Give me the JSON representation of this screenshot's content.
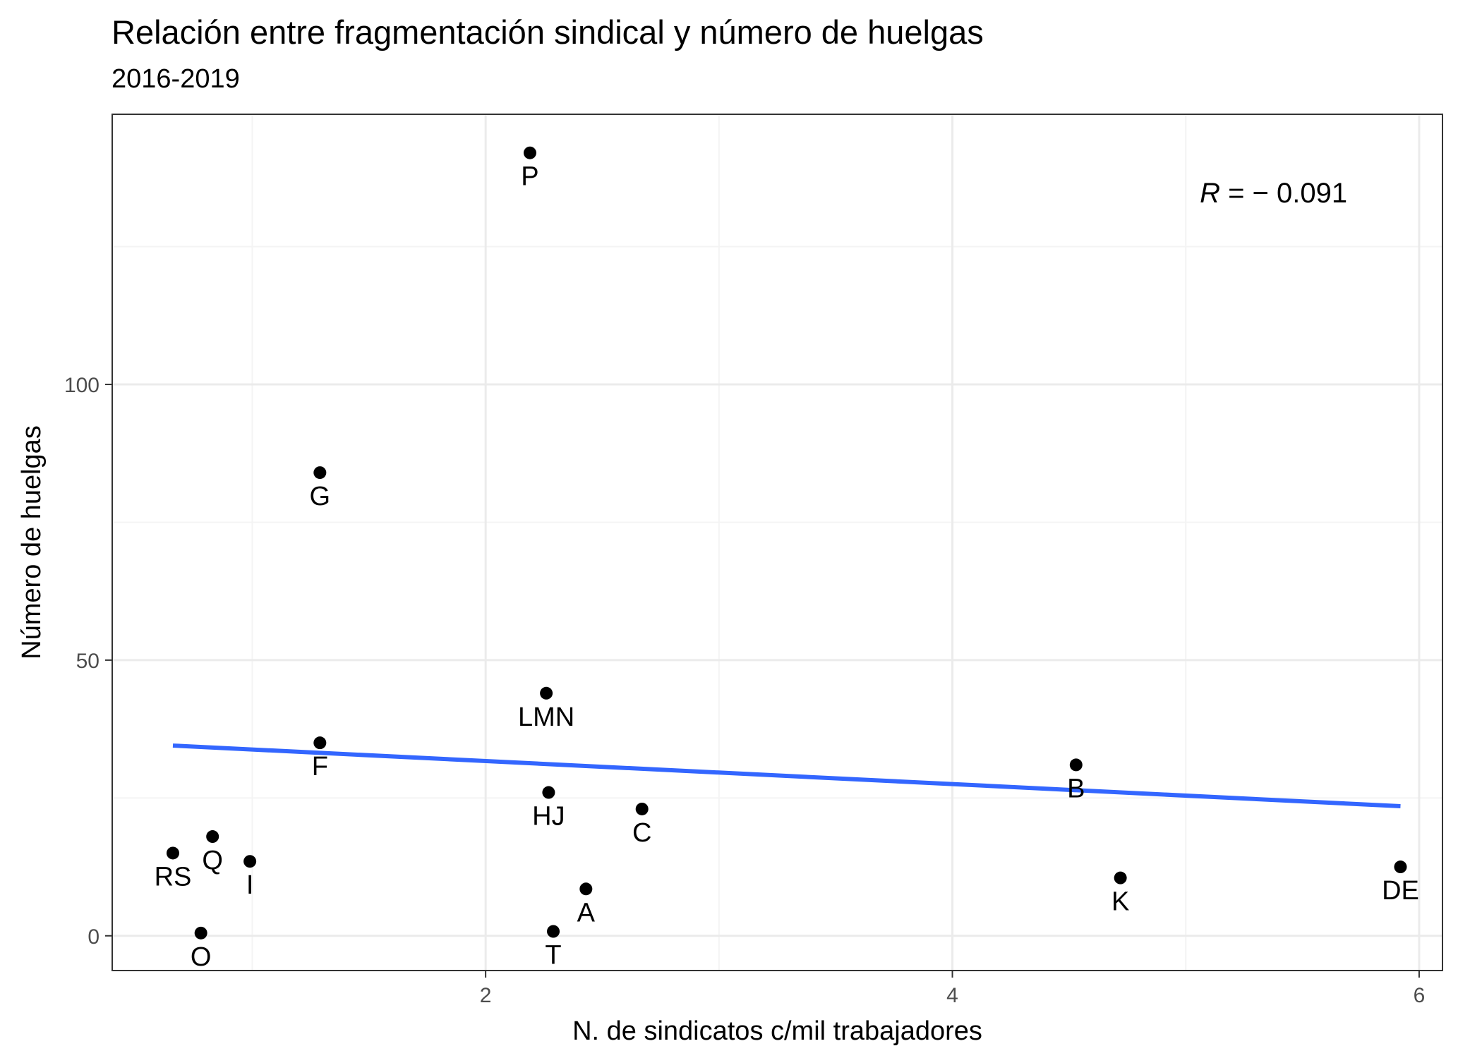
{
  "chart_data": {
    "type": "scatter",
    "title": "Relación entre fragmentación sindical y número de huelgas",
    "subtitle": "2016-2019",
    "xlabel": "N. de sindicatos c/mil trabajadores",
    "ylabel": "Número de huelgas",
    "xlim": [
      0.4,
      6.1
    ],
    "ylim": [
      -6.3,
      149
    ],
    "x_ticks": [
      2,
      4,
      6
    ],
    "y_ticks": [
      0,
      50,
      100
    ],
    "x_tick_labels": [
      "2",
      "4",
      "6"
    ],
    "y_tick_labels": [
      "0",
      "50",
      "100"
    ],
    "grid": true,
    "annotation": {
      "var": "R",
      "text": " = − 0.091",
      "x": 5.06,
      "y": 133
    },
    "points": [
      {
        "label": "P",
        "x": 2.19,
        "y": 142
      },
      {
        "label": "G",
        "x": 1.29,
        "y": 84
      },
      {
        "label": "LMN",
        "x": 2.26,
        "y": 44
      },
      {
        "label": "F",
        "x": 1.29,
        "y": 35
      },
      {
        "label": "B",
        "x": 4.53,
        "y": 31
      },
      {
        "label": "HJ",
        "x": 2.27,
        "y": 26
      },
      {
        "label": "C",
        "x": 2.67,
        "y": 23
      },
      {
        "label": "Q",
        "x": 0.83,
        "y": 18
      },
      {
        "label": "RS",
        "x": 0.66,
        "y": 15
      },
      {
        "label": "I",
        "x": 0.99,
        "y": 13.5
      },
      {
        "label": "DE",
        "x": 5.92,
        "y": 12.5
      },
      {
        "label": "K",
        "x": 4.72,
        "y": 10.5
      },
      {
        "label": "A",
        "x": 2.43,
        "y": 8.5
      },
      {
        "label": "T",
        "x": 2.29,
        "y": 0.8
      },
      {
        "label": "O",
        "x": 0.78,
        "y": 0.5
      }
    ],
    "trend_line": {
      "x": [
        0.66,
        5.92
      ],
      "y": [
        34.5,
        23.5
      ],
      "color": "#3366FF"
    },
    "colors": {
      "points": "#000000",
      "trend": "#3366FF",
      "grid_major": "#EBEBEB",
      "grid_minor": "#F4F4F4",
      "panel_border": "#333333"
    }
  }
}
